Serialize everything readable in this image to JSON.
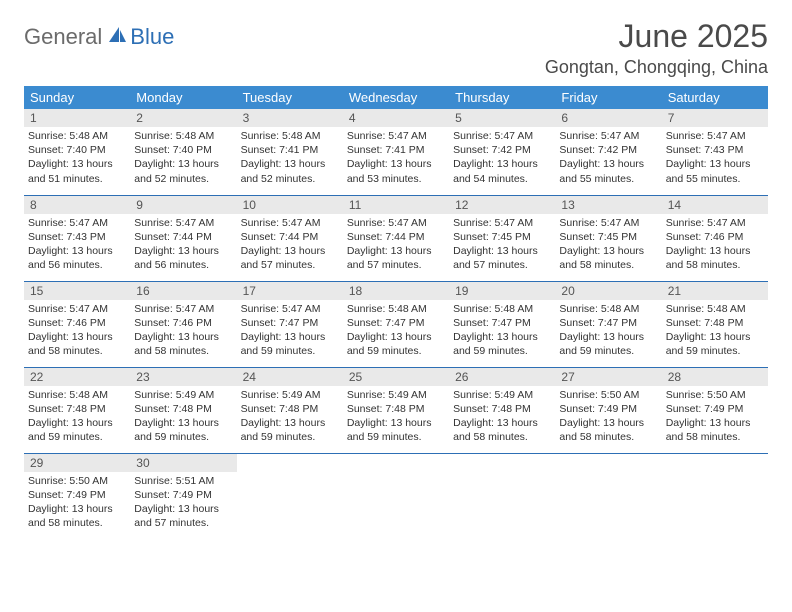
{
  "logo": {
    "general": "General",
    "blue": "Blue"
  },
  "title": "June 2025",
  "location": "Gongtan, Chongqing, China",
  "colors": {
    "header_bg": "#3b8bd0",
    "header_text": "#ffffff",
    "daynum_bg": "#e9e9e9",
    "row_border": "#2d6fb5",
    "logo_gray": "#6b6b6b",
    "logo_blue": "#2d6fb5"
  },
  "weekdays": [
    "Sunday",
    "Monday",
    "Tuesday",
    "Wednesday",
    "Thursday",
    "Friday",
    "Saturday"
  ],
  "days": [
    {
      "n": 1,
      "sunrise": "5:48 AM",
      "sunset": "7:40 PM",
      "daylight": "13 hours and 51 minutes."
    },
    {
      "n": 2,
      "sunrise": "5:48 AM",
      "sunset": "7:40 PM",
      "daylight": "13 hours and 52 minutes."
    },
    {
      "n": 3,
      "sunrise": "5:48 AM",
      "sunset": "7:41 PM",
      "daylight": "13 hours and 52 minutes."
    },
    {
      "n": 4,
      "sunrise": "5:47 AM",
      "sunset": "7:41 PM",
      "daylight": "13 hours and 53 minutes."
    },
    {
      "n": 5,
      "sunrise": "5:47 AM",
      "sunset": "7:42 PM",
      "daylight": "13 hours and 54 minutes."
    },
    {
      "n": 6,
      "sunrise": "5:47 AM",
      "sunset": "7:42 PM",
      "daylight": "13 hours and 55 minutes."
    },
    {
      "n": 7,
      "sunrise": "5:47 AM",
      "sunset": "7:43 PM",
      "daylight": "13 hours and 55 minutes."
    },
    {
      "n": 8,
      "sunrise": "5:47 AM",
      "sunset": "7:43 PM",
      "daylight": "13 hours and 56 minutes."
    },
    {
      "n": 9,
      "sunrise": "5:47 AM",
      "sunset": "7:44 PM",
      "daylight": "13 hours and 56 minutes."
    },
    {
      "n": 10,
      "sunrise": "5:47 AM",
      "sunset": "7:44 PM",
      "daylight": "13 hours and 57 minutes."
    },
    {
      "n": 11,
      "sunrise": "5:47 AM",
      "sunset": "7:44 PM",
      "daylight": "13 hours and 57 minutes."
    },
    {
      "n": 12,
      "sunrise": "5:47 AM",
      "sunset": "7:45 PM",
      "daylight": "13 hours and 57 minutes."
    },
    {
      "n": 13,
      "sunrise": "5:47 AM",
      "sunset": "7:45 PM",
      "daylight": "13 hours and 58 minutes."
    },
    {
      "n": 14,
      "sunrise": "5:47 AM",
      "sunset": "7:46 PM",
      "daylight": "13 hours and 58 minutes."
    },
    {
      "n": 15,
      "sunrise": "5:47 AM",
      "sunset": "7:46 PM",
      "daylight": "13 hours and 58 minutes."
    },
    {
      "n": 16,
      "sunrise": "5:47 AM",
      "sunset": "7:46 PM",
      "daylight": "13 hours and 58 minutes."
    },
    {
      "n": 17,
      "sunrise": "5:47 AM",
      "sunset": "7:47 PM",
      "daylight": "13 hours and 59 minutes."
    },
    {
      "n": 18,
      "sunrise": "5:48 AM",
      "sunset": "7:47 PM",
      "daylight": "13 hours and 59 minutes."
    },
    {
      "n": 19,
      "sunrise": "5:48 AM",
      "sunset": "7:47 PM",
      "daylight": "13 hours and 59 minutes."
    },
    {
      "n": 20,
      "sunrise": "5:48 AM",
      "sunset": "7:47 PM",
      "daylight": "13 hours and 59 minutes."
    },
    {
      "n": 21,
      "sunrise": "5:48 AM",
      "sunset": "7:48 PM",
      "daylight": "13 hours and 59 minutes."
    },
    {
      "n": 22,
      "sunrise": "5:48 AM",
      "sunset": "7:48 PM",
      "daylight": "13 hours and 59 minutes."
    },
    {
      "n": 23,
      "sunrise": "5:49 AM",
      "sunset": "7:48 PM",
      "daylight": "13 hours and 59 minutes."
    },
    {
      "n": 24,
      "sunrise": "5:49 AM",
      "sunset": "7:48 PM",
      "daylight": "13 hours and 59 minutes."
    },
    {
      "n": 25,
      "sunrise": "5:49 AM",
      "sunset": "7:48 PM",
      "daylight": "13 hours and 59 minutes."
    },
    {
      "n": 26,
      "sunrise": "5:49 AM",
      "sunset": "7:48 PM",
      "daylight": "13 hours and 58 minutes."
    },
    {
      "n": 27,
      "sunrise": "5:50 AM",
      "sunset": "7:49 PM",
      "daylight": "13 hours and 58 minutes."
    },
    {
      "n": 28,
      "sunrise": "5:50 AM",
      "sunset": "7:49 PM",
      "daylight": "13 hours and 58 minutes."
    },
    {
      "n": 29,
      "sunrise": "5:50 AM",
      "sunset": "7:49 PM",
      "daylight": "13 hours and 58 minutes."
    },
    {
      "n": 30,
      "sunrise": "5:51 AM",
      "sunset": "7:49 PM",
      "daylight": "13 hours and 57 minutes."
    }
  ],
  "labels": {
    "sunrise": "Sunrise:",
    "sunset": "Sunset:",
    "daylight": "Daylight:"
  }
}
